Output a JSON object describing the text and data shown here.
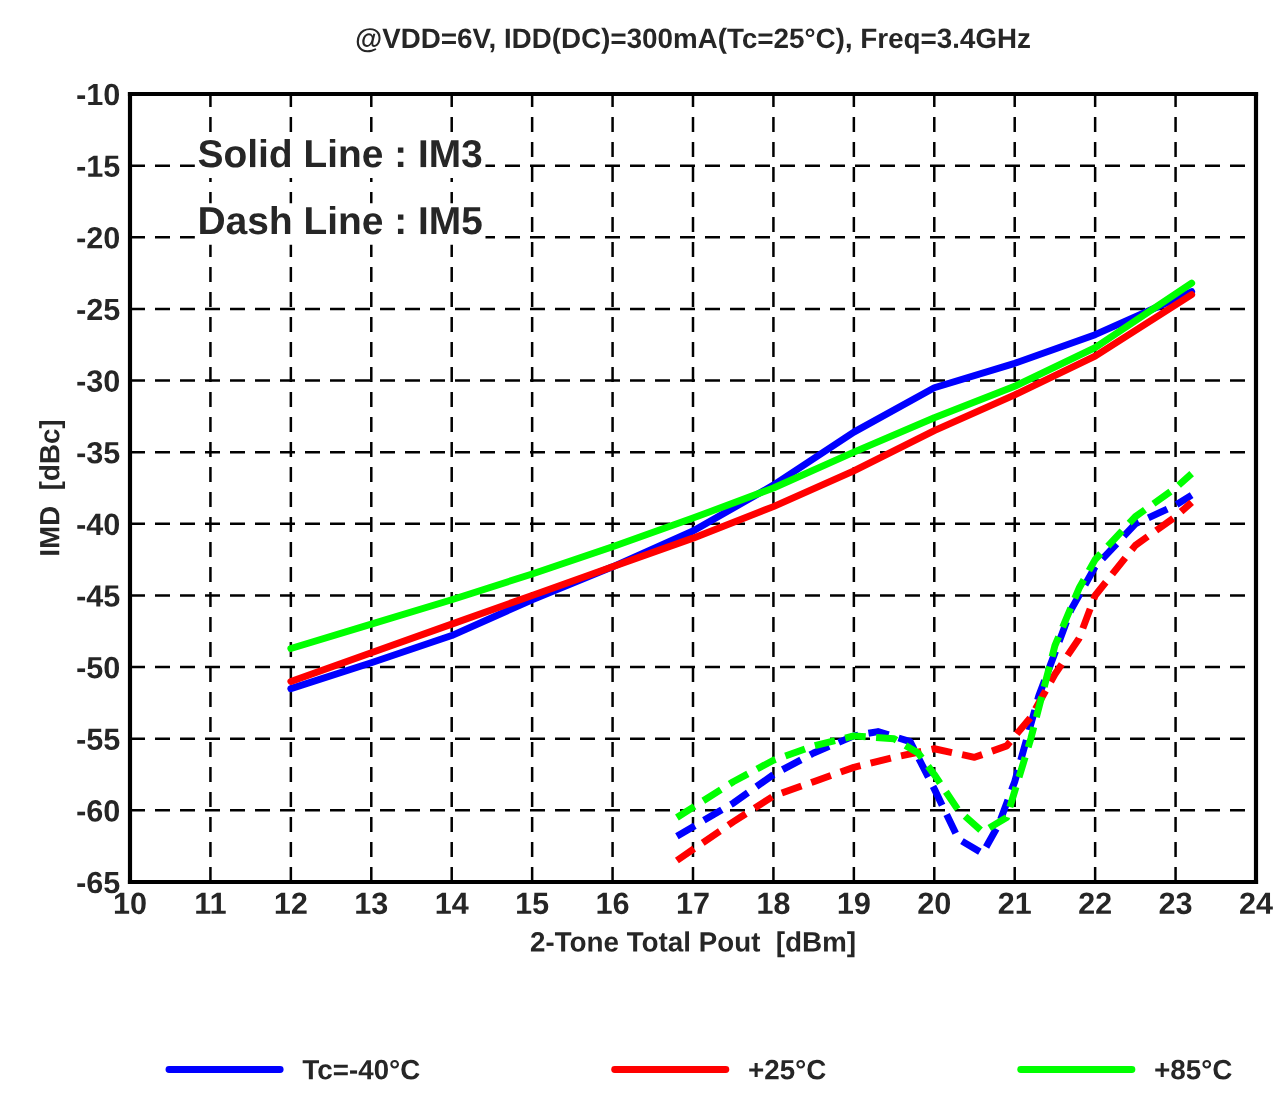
{
  "chart_data": {
    "type": "line",
    "title": "@VDD=6V, IDD(DC)=300mA(Tc=25°C), Freq=3.4GHz",
    "xlabel": "2-Tone Total Pout  [dBm]",
    "ylabel": "IMD  [dBc]",
    "annotations": [
      "Solid Line : IM3",
      "Dash Line : IM5"
    ],
    "xlim": [
      10,
      24
    ],
    "xticks": [
      10,
      11,
      12,
      13,
      14,
      15,
      16,
      17,
      18,
      19,
      20,
      21,
      22,
      23,
      24
    ],
    "ylim": [
      -65,
      -10
    ],
    "yticks": [
      -65,
      -60,
      -55,
      -50,
      -45,
      -40,
      -35,
      -30,
      -25,
      -20,
      -15,
      -10
    ],
    "grid": true,
    "legend": "bottom",
    "marker": "none",
    "series": [
      {
        "name": "Tc=-40°C",
        "color": "#0000ff",
        "line_style": "solid",
        "x": [
          12,
          13,
          14,
          15,
          16,
          17,
          18,
          19,
          20,
          21,
          22,
          23.2
        ],
        "values": [
          -51.5,
          -49.7,
          -47.8,
          -45.3,
          -43,
          -40.5,
          -37.3,
          -33.6,
          -30.5,
          -28.8,
          -26.8,
          -23.8
        ]
      },
      {
        "name": "+25°C",
        "color": "#ff0000",
        "line_style": "solid",
        "x": [
          12,
          13,
          14,
          15,
          16,
          17,
          18,
          19,
          20,
          21,
          22,
          23.2
        ],
        "values": [
          -51,
          -49,
          -47,
          -45,
          -43,
          -41,
          -38.8,
          -36.3,
          -33.5,
          -31,
          -28.3,
          -24
        ]
      },
      {
        "name": "+85°C",
        "color": "#00ff00",
        "line_style": "solid",
        "x": [
          12,
          13,
          14,
          15,
          16,
          17,
          18,
          19,
          20,
          21,
          22,
          23.2
        ],
        "values": [
          -48.7,
          -47,
          -45.3,
          -43.5,
          -41.6,
          -39.6,
          -37.5,
          -35,
          -32.6,
          -30.4,
          -27.7,
          -23.2
        ]
      },
      {
        "color": "#0000ff",
        "line_style": "dashed",
        "x": [
          16.8,
          17.5,
          18,
          18.5,
          19,
          19.3,
          19.7,
          20,
          20.3,
          20.6,
          20.8,
          21,
          21.3,
          21.7,
          22,
          22.5,
          23,
          23.2
        ],
        "values": [
          -61.8,
          -59.5,
          -57.5,
          -56,
          -54.8,
          -54.5,
          -55.2,
          -58.5,
          -62,
          -63,
          -61,
          -58,
          -52,
          -46,
          -43,
          -40,
          -38.7,
          -38
        ]
      },
      {
        "color": "#ff0000",
        "line_style": "dashed",
        "x": [
          16.8,
          17.5,
          18,
          18.5,
          19,
          19.5,
          20,
          20.5,
          20.9,
          21.2,
          21.5,
          21.8,
          22,
          22.5,
          23,
          23.2
        ],
        "values": [
          -63.5,
          -60.8,
          -59,
          -58,
          -57,
          -56.3,
          -55.7,
          -56.3,
          -55.5,
          -53.5,
          -50.5,
          -48,
          -45,
          -41.5,
          -39.5,
          -38.5
        ]
      },
      {
        "color": "#00ff00",
        "line_style": "dashed",
        "x": [
          16.8,
          17.5,
          18,
          18.5,
          19,
          19.5,
          19.8,
          20,
          20.3,
          20.6,
          20.9,
          21.2,
          21.5,
          21.8,
          22,
          22.5,
          23,
          23.2
        ],
        "values": [
          -60.5,
          -58,
          -56.5,
          -55.5,
          -54.8,
          -55,
          -56,
          -57.5,
          -60,
          -61.5,
          -60.5,
          -55,
          -48.5,
          -44.5,
          -42.5,
          -39.5,
          -37.5,
          -36.5
        ]
      }
    ]
  }
}
